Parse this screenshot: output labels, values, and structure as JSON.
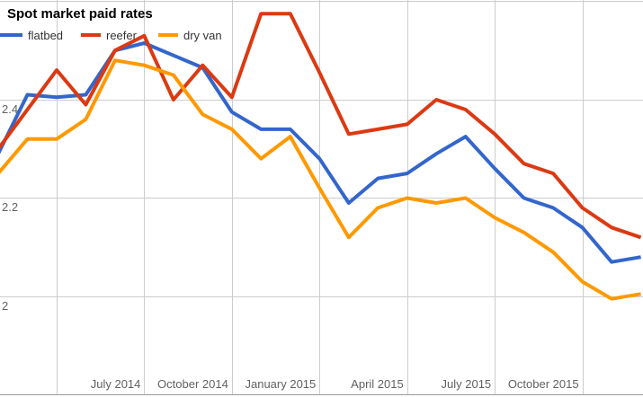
{
  "title": "Spot market paid rates",
  "y_axis": {
    "tick_labels": [
      {
        "value": 2.4,
        "label": "2.4"
      },
      {
        "value": 2.2,
        "label": "2.2"
      },
      {
        "value": 2.0,
        "label": "2"
      }
    ],
    "gridline_values": [
      2.6,
      2.4,
      2.2,
      2.0,
      1.8
    ]
  },
  "x_axis": {
    "gridline_month_indices": [
      2,
      5,
      8,
      11,
      14,
      17,
      20
    ],
    "tick_labels": [
      {
        "month_index": 5,
        "label": "July 2014"
      },
      {
        "month_index": 8,
        "label": "October 2014"
      },
      {
        "month_index": 11,
        "label": "January 2015"
      },
      {
        "month_index": 14,
        "label": "April 2015"
      },
      {
        "month_index": 17,
        "label": "July 2015"
      },
      {
        "month_index": 20,
        "label": "October 2015"
      }
    ]
  },
  "chart_data": {
    "type": "line",
    "title": "Spot market paid rates",
    "xlabel": "",
    "ylabel": "",
    "ylim": [
      1.8,
      2.6
    ],
    "grid": true,
    "legend_position": "top-left",
    "x": [
      "Feb 2014",
      "Mar 2014",
      "Apr 2014",
      "May 2014",
      "Jun 2014",
      "Jul 2014",
      "Aug 2014",
      "Sep 2014",
      "Oct 2014",
      "Nov 2014",
      "Dec 2014",
      "Jan 2015",
      "Feb 2015",
      "Mar 2015",
      "Apr 2015",
      "May 2015",
      "Jun 2015",
      "Jul 2015",
      "Aug 2015",
      "Sep 2015",
      "Oct 2015",
      "Nov 2015",
      "Dec 2015"
    ],
    "series": [
      {
        "name": "flatbed",
        "color": "#3366CC",
        "values": [
          2.29,
          2.41,
          2.405,
          2.41,
          2.5,
          2.515,
          2.49,
          2.465,
          2.375,
          2.34,
          2.34,
          2.28,
          2.19,
          2.24,
          2.25,
          2.29,
          2.325,
          2.26,
          2.2,
          2.18,
          2.14,
          2.07,
          2.08
        ]
      },
      {
        "name": "reefer",
        "color": "#DC3912",
        "values": [
          2.3,
          2.38,
          2.46,
          2.39,
          2.5,
          2.53,
          2.4,
          2.47,
          2.405,
          2.575,
          2.575,
          2.455,
          2.33,
          2.34,
          2.35,
          2.4,
          2.38,
          2.33,
          2.27,
          2.25,
          2.18,
          2.14,
          2.12
        ]
      },
      {
        "name": "dry van",
        "color": "#FF9900",
        "values": [
          2.25,
          2.32,
          2.32,
          2.36,
          2.48,
          2.47,
          2.45,
          2.37,
          2.34,
          2.28,
          2.325,
          2.22,
          2.12,
          2.18,
          2.2,
          2.19,
          2.2,
          2.16,
          2.13,
          2.09,
          2.03,
          1.995,
          2.005
        ]
      }
    ],
    "gridline_color": "#cccccc",
    "baseline_color": "#999999"
  }
}
